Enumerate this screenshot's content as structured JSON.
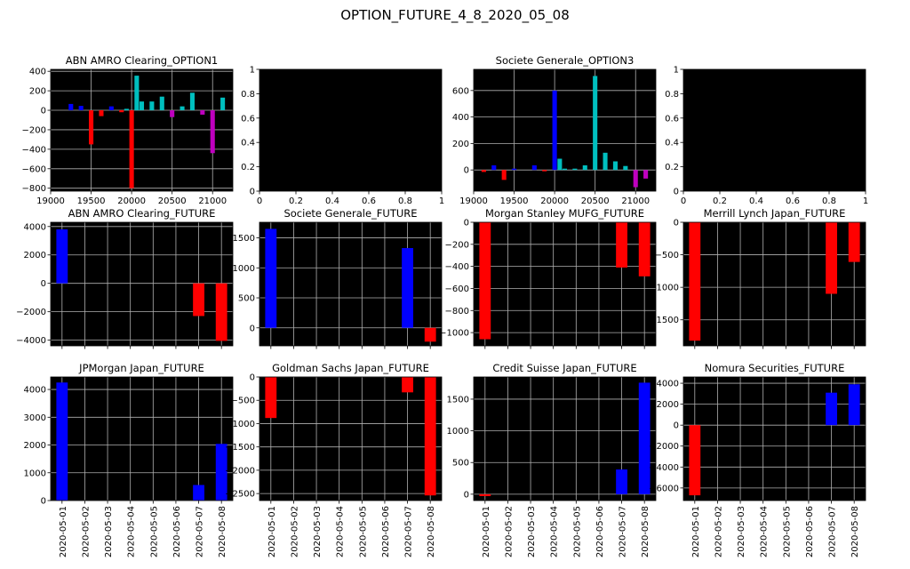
{
  "figure": {
    "title": "OPTION_FUTURE_4_8_2020_05_08"
  },
  "colors": {
    "background": "#000000",
    "grid": "#b0b0b0",
    "blue": "#0000ff",
    "red": "#ff0000",
    "cyan": "#00bfbf",
    "magenta": "#bf00bf"
  },
  "dates": [
    "2020-05-01",
    "2020-05-02",
    "2020-05-03",
    "2020-05-04",
    "2020-05-05",
    "2020-05-06",
    "2020-05-07",
    "2020-05-08"
  ],
  "chart_data": [
    {
      "type": "bar",
      "title": "ABN AMRO Clearing_OPTION1",
      "xlim": [
        19000,
        21250
      ],
      "ylim": [
        -830,
        420
      ],
      "xticks": [
        19000,
        19500,
        20000,
        20500,
        21000
      ],
      "yticks": [
        -800,
        -600,
        -400,
        -200,
        0,
        200,
        400
      ],
      "bars": [
        {
          "x": 19250,
          "value": 65,
          "color": "blue"
        },
        {
          "x": 19375,
          "value": 45,
          "color": "blue"
        },
        {
          "x": 19500,
          "value": -350,
          "color": "red"
        },
        {
          "x": 19625,
          "value": -60,
          "color": "red"
        },
        {
          "x": 19750,
          "value": 40,
          "color": "blue"
        },
        {
          "x": 19875,
          "value": -20,
          "color": "red"
        },
        {
          "x": 19937,
          "value": 15,
          "color": "cyan"
        },
        {
          "x": 20000,
          "value": -800,
          "color": "red"
        },
        {
          "x": 20063,
          "value": 355,
          "color": "cyan"
        },
        {
          "x": 20125,
          "value": 90,
          "color": "cyan"
        },
        {
          "x": 20250,
          "value": 90,
          "color": "cyan"
        },
        {
          "x": 20375,
          "value": 140,
          "color": "cyan"
        },
        {
          "x": 20500,
          "value": -70,
          "color": "magenta"
        },
        {
          "x": 20625,
          "value": 40,
          "color": "cyan"
        },
        {
          "x": 20750,
          "value": 180,
          "color": "cyan"
        },
        {
          "x": 20875,
          "value": -45,
          "color": "magenta"
        },
        {
          "x": 21000,
          "value": -440,
          "color": "magenta"
        },
        {
          "x": 21125,
          "value": 130,
          "color": "cyan"
        }
      ]
    },
    {
      "type": "bar",
      "title": "",
      "empty": true,
      "xlim": [
        0,
        1
      ],
      "ylim": [
        0,
        1
      ],
      "xticks": [
        0.0,
        0.2,
        0.4,
        0.6,
        0.8,
        1.0
      ],
      "yticks": [
        0.0,
        0.2,
        0.4,
        0.6,
        0.8,
        1.0
      ],
      "bars": []
    },
    {
      "type": "bar",
      "title": "Societe Generale_OPTION3",
      "xlim": [
        19000,
        21250
      ],
      "ylim": [
        -160,
        760
      ],
      "xticks": [
        19000,
        19500,
        20000,
        20500,
        21000
      ],
      "yticks": [
        0,
        200,
        400,
        600
      ],
      "bars": [
        {
          "x": 19125,
          "value": -15,
          "color": "red"
        },
        {
          "x": 19250,
          "value": 35,
          "color": "blue"
        },
        {
          "x": 19375,
          "value": -75,
          "color": "red"
        },
        {
          "x": 19500,
          "value": 10,
          "color": "blue"
        },
        {
          "x": 19750,
          "value": 35,
          "color": "blue"
        },
        {
          "x": 19875,
          "value": -10,
          "color": "red"
        },
        {
          "x": 20000,
          "value": 600,
          "color": "blue"
        },
        {
          "x": 20063,
          "value": 85,
          "color": "cyan"
        },
        {
          "x": 20125,
          "value": 10,
          "color": "cyan"
        },
        {
          "x": 20250,
          "value": 10,
          "color": "cyan"
        },
        {
          "x": 20375,
          "value": 35,
          "color": "cyan"
        },
        {
          "x": 20500,
          "value": 710,
          "color": "cyan"
        },
        {
          "x": 20625,
          "value": 130,
          "color": "cyan"
        },
        {
          "x": 20750,
          "value": 65,
          "color": "cyan"
        },
        {
          "x": 20875,
          "value": 30,
          "color": "cyan"
        },
        {
          "x": 21000,
          "value": -130,
          "color": "magenta"
        },
        {
          "x": 21125,
          "value": -65,
          "color": "magenta"
        }
      ]
    },
    {
      "type": "bar",
      "title": "",
      "empty": true,
      "xlim": [
        0,
        1
      ],
      "ylim": [
        0,
        1
      ],
      "xticks": [
        0.0,
        0.2,
        0.4,
        0.6,
        0.8,
        1.0
      ],
      "yticks": [
        0.0,
        0.2,
        0.4,
        0.6,
        0.8,
        1.0
      ],
      "bars": []
    },
    {
      "type": "bar",
      "title": "ABN AMRO Clearing_FUTURE",
      "dated": true,
      "ylim": [
        -4400,
        4300
      ],
      "yticks": [
        -4000,
        -2000,
        0,
        2000,
        4000
      ],
      "values": [
        3800,
        0,
        0,
        0,
        0,
        0,
        -2300,
        -4050
      ]
    },
    {
      "type": "bar",
      "title": "Societe Generale_FUTURE",
      "dated": true,
      "ylim": [
        -300,
        1760
      ],
      "yticks": [
        0,
        500,
        1000,
        1500
      ],
      "values": [
        1650,
        0,
        0,
        0,
        0,
        0,
        1330,
        -230
      ]
    },
    {
      "type": "bar",
      "title": "Morgan Stanley MUFG_FUTURE",
      "dated": true,
      "ylim": [
        -1120,
        0
      ],
      "yticks": [
        -1000,
        -800,
        -600,
        -400,
        -200,
        0
      ],
      "values": [
        -1060,
        0,
        0,
        0,
        0,
        0,
        -410,
        -490
      ]
    },
    {
      "type": "bar",
      "title": "Merrill Lynch Japan_FUTURE",
      "dated": true,
      "ylim": [
        -1900,
        0
      ],
      "yticks": [
        -1500,
        -1000,
        -500,
        0
      ],
      "values": [
        -1820,
        0,
        0,
        0,
        0,
        0,
        -1100,
        -610
      ]
    },
    {
      "type": "bar",
      "title": "JPMorgan Japan_FUTURE",
      "dated": true,
      "ylim": [
        0,
        4450
      ],
      "yticks": [
        0,
        1000,
        2000,
        3000,
        4000
      ],
      "values": [
        4250,
        0,
        0,
        0,
        0,
        0,
        560,
        2040
      ]
    },
    {
      "type": "bar",
      "title": "Goldman Sachs Japan_FUTURE",
      "dated": true,
      "ylim": [
        -2650,
        0
      ],
      "yticks": [
        -2500,
        -2000,
        -1500,
        -1000,
        -500,
        0
      ],
      "values": [
        -880,
        0,
        0,
        0,
        0,
        0,
        -330,
        -2540
      ]
    },
    {
      "type": "bar",
      "title": "Credit Suisse Japan_FUTURE",
      "dated": true,
      "ylim": [
        -100,
        1850
      ],
      "yticks": [
        0,
        500,
        1000,
        1500
      ],
      "values": [
        -30,
        0,
        0,
        0,
        0,
        0,
        390,
        1760
      ]
    },
    {
      "type": "bar",
      "title": "Nomura Securities_FUTURE",
      "dated": true,
      "ylim": [
        -7200,
        4600
      ],
      "yticks": [
        -6000,
        -4000,
        -2000,
        0,
        2000,
        4000
      ],
      "values": [
        -6700,
        0,
        0,
        0,
        0,
        0,
        3100,
        3900
      ]
    }
  ]
}
